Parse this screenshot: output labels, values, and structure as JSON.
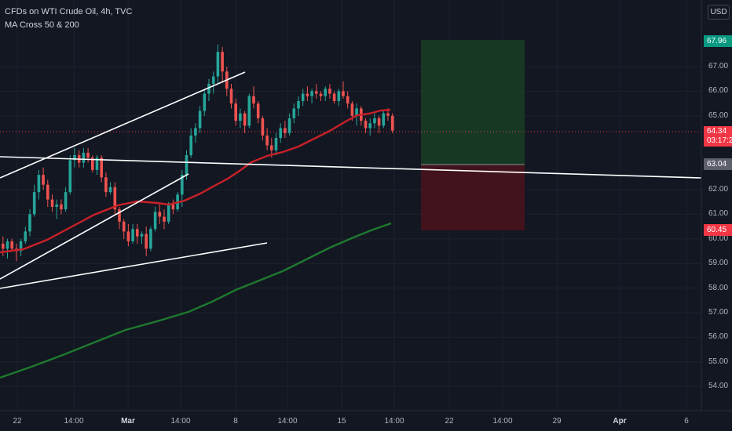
{
  "legend": {
    "title": "CFDs on WTI Crude Oil, 4h, TVC",
    "indicator": "MA Cross 50 & 200"
  },
  "currency": "USD",
  "y_axis": {
    "ticks": [
      "67.00",
      "66.00",
      "65.00",
      "62.00",
      "61.00",
      "60.00",
      "59.00",
      "58.00",
      "57.00",
      "56.00",
      "55.00",
      "54.00"
    ],
    "tick_values": [
      67,
      66,
      65,
      62,
      61,
      60,
      59,
      58,
      57,
      56,
      55,
      54
    ]
  },
  "x_axis": {
    "ticks": [
      {
        "label": "22",
        "bold": false
      },
      {
        "label": "14:00",
        "bold": false
      },
      {
        "label": "Mar",
        "bold": true
      },
      {
        "label": "14:00",
        "bold": false
      },
      {
        "label": "8",
        "bold": false
      },
      {
        "label": "14:00",
        "bold": false
      },
      {
        "label": "15",
        "bold": false
      },
      {
        "label": "14:00",
        "bold": false
      },
      {
        "label": "22",
        "bold": false
      },
      {
        "label": "14:00",
        "bold": false
      },
      {
        "label": "29",
        "bold": false
      },
      {
        "label": "Apr",
        "bold": true
      },
      {
        "label": "6",
        "bold": false
      }
    ]
  },
  "price_tags": {
    "target": {
      "value": "67.96",
      "color": "#089981"
    },
    "current": {
      "value": "64.34",
      "countdown": "03:17:2",
      "color": "#f23645"
    },
    "entry": {
      "value": "63.04",
      "color": "#5d606b"
    },
    "stop": {
      "value": "60.45",
      "color": "#f23645"
    }
  },
  "chart_data": {
    "type": "candlestick",
    "title": "CFDs on WTI Crude Oil, 4h, TVC",
    "ylim": [
      53.5,
      68.3
    ],
    "y_unit": "USD",
    "candles": [
      [
        59.8,
        60.1,
        59.3,
        59.6
      ],
      [
        59.6,
        60.0,
        59.2,
        59.9
      ],
      [
        59.9,
        60.0,
        59.5,
        59.6
      ],
      [
        59.6,
        59.8,
        59.1,
        59.5
      ],
      [
        59.5,
        60.0,
        59.3,
        59.9
      ],
      [
        59.9,
        60.5,
        59.8,
        60.3
      ],
      [
        60.3,
        61.2,
        60.1,
        61.0
      ],
      [
        61.0,
        62.2,
        60.9,
        61.9
      ],
      [
        61.9,
        62.8,
        61.6,
        62.6
      ],
      [
        62.6,
        62.9,
        62.0,
        62.2
      ],
      [
        62.2,
        62.4,
        61.3,
        61.6
      ],
      [
        61.6,
        61.8,
        61.1,
        61.3
      ],
      [
        61.3,
        61.6,
        60.8,
        61.4
      ],
      [
        61.4,
        61.6,
        61.0,
        61.2
      ],
      [
        61.2,
        62.1,
        61.1,
        61.9
      ],
      [
        61.9,
        63.4,
        61.8,
        63.2
      ],
      [
        63.2,
        63.7,
        62.9,
        63.4
      ],
      [
        63.4,
        63.6,
        62.9,
        63.1
      ],
      [
        63.1,
        63.7,
        62.9,
        63.5
      ],
      [
        63.5,
        63.7,
        63.1,
        63.3
      ],
      [
        63.3,
        63.4,
        62.7,
        62.8
      ],
      [
        62.8,
        63.4,
        62.6,
        63.3
      ],
      [
        63.3,
        63.4,
        62.3,
        62.5
      ],
      [
        62.5,
        62.7,
        61.7,
        61.9
      ],
      [
        61.9,
        62.3,
        61.8,
        62.1
      ],
      [
        62.1,
        62.3,
        61.0,
        61.2
      ],
      [
        61.2,
        61.3,
        60.4,
        60.7
      ],
      [
        60.7,
        60.8,
        60.0,
        60.3
      ],
      [
        60.3,
        60.6,
        59.7,
        59.9
      ],
      [
        59.9,
        60.6,
        59.8,
        60.4
      ],
      [
        60.4,
        60.6,
        59.8,
        60.1
      ],
      [
        60.1,
        60.3,
        59.8,
        60.2
      ],
      [
        60.2,
        60.5,
        59.3,
        59.6
      ],
      [
        59.6,
        60.5,
        59.5,
        60.4
      ],
      [
        60.4,
        61.3,
        60.3,
        61.1
      ],
      [
        61.1,
        61.4,
        60.6,
        60.9
      ],
      [
        60.9,
        61.2,
        60.4,
        60.7
      ],
      [
        60.7,
        61.5,
        60.6,
        61.4
      ],
      [
        61.4,
        61.6,
        61.0,
        61.2
      ],
      [
        61.2,
        61.9,
        61.1,
        61.8
      ],
      [
        61.8,
        62.8,
        61.3,
        62.6
      ],
      [
        62.6,
        63.6,
        62.4,
        63.4
      ],
      [
        63.4,
        64.5,
        63.3,
        64.2
      ],
      [
        64.2,
        64.7,
        63.9,
        64.5
      ],
      [
        64.5,
        65.4,
        64.3,
        65.2
      ],
      [
        65.2,
        66.1,
        65.0,
        65.9
      ],
      [
        65.9,
        66.5,
        65.6,
        66.3
      ],
      [
        66.3,
        66.8,
        65.9,
        66.6
      ],
      [
        66.6,
        67.9,
        66.3,
        67.6
      ],
      [
        67.6,
        67.8,
        66.4,
        66.8
      ],
      [
        66.8,
        67.0,
        65.8,
        66.1
      ],
      [
        66.1,
        66.3,
        65.3,
        65.5
      ],
      [
        65.5,
        65.7,
        64.6,
        64.8
      ],
      [
        64.8,
        65.3,
        64.5,
        65.1
      ],
      [
        65.1,
        65.2,
        64.3,
        64.6
      ],
      [
        64.6,
        65.9,
        64.5,
        65.8
      ],
      [
        65.8,
        66.2,
        65.3,
        65.5
      ],
      [
        65.5,
        65.6,
        64.7,
        64.9
      ],
      [
        64.9,
        65.0,
        64.0,
        64.2
      ],
      [
        64.2,
        64.5,
        63.6,
        63.8
      ],
      [
        63.8,
        64.1,
        63.3,
        63.6
      ],
      [
        63.6,
        64.3,
        63.4,
        64.1
      ],
      [
        64.1,
        64.7,
        63.9,
        64.5
      ],
      [
        64.5,
        64.8,
        64.1,
        64.3
      ],
      [
        64.3,
        65.1,
        64.2,
        64.9
      ],
      [
        64.9,
        65.5,
        64.7,
        65.3
      ],
      [
        65.3,
        65.8,
        65.0,
        65.6
      ],
      [
        65.6,
        66.1,
        65.4,
        65.9
      ],
      [
        65.9,
        66.2,
        65.6,
        65.8
      ],
      [
        65.8,
        66.1,
        65.5,
        66.0
      ],
      [
        66.0,
        66.3,
        65.7,
        65.9
      ],
      [
        65.9,
        66.0,
        65.6,
        65.8
      ],
      [
        65.8,
        66.2,
        65.6,
        66.1
      ],
      [
        66.1,
        66.3,
        65.7,
        65.9
      ],
      [
        65.9,
        66.0,
        65.5,
        65.6
      ],
      [
        65.6,
        66.1,
        65.4,
        66.0
      ],
      [
        66.0,
        66.4,
        65.7,
        65.8
      ],
      [
        65.8,
        66.0,
        65.3,
        65.5
      ],
      [
        65.5,
        65.6,
        64.8,
        65.0
      ],
      [
        65.0,
        65.5,
        64.6,
        65.3
      ],
      [
        65.3,
        65.4,
        64.6,
        64.8
      ],
      [
        64.8,
        64.9,
        64.3,
        64.5
      ],
      [
        64.5,
        64.9,
        64.2,
        64.7
      ],
      [
        64.7,
        65.1,
        64.5,
        64.9
      ],
      [
        64.9,
        65.0,
        64.3,
        64.6
      ],
      [
        64.6,
        65.2,
        64.5,
        65.1
      ],
      [
        65.1,
        65.3,
        64.8,
        65.0
      ],
      [
        65.0,
        65.1,
        64.3,
        64.4
      ]
    ]
  }
}
